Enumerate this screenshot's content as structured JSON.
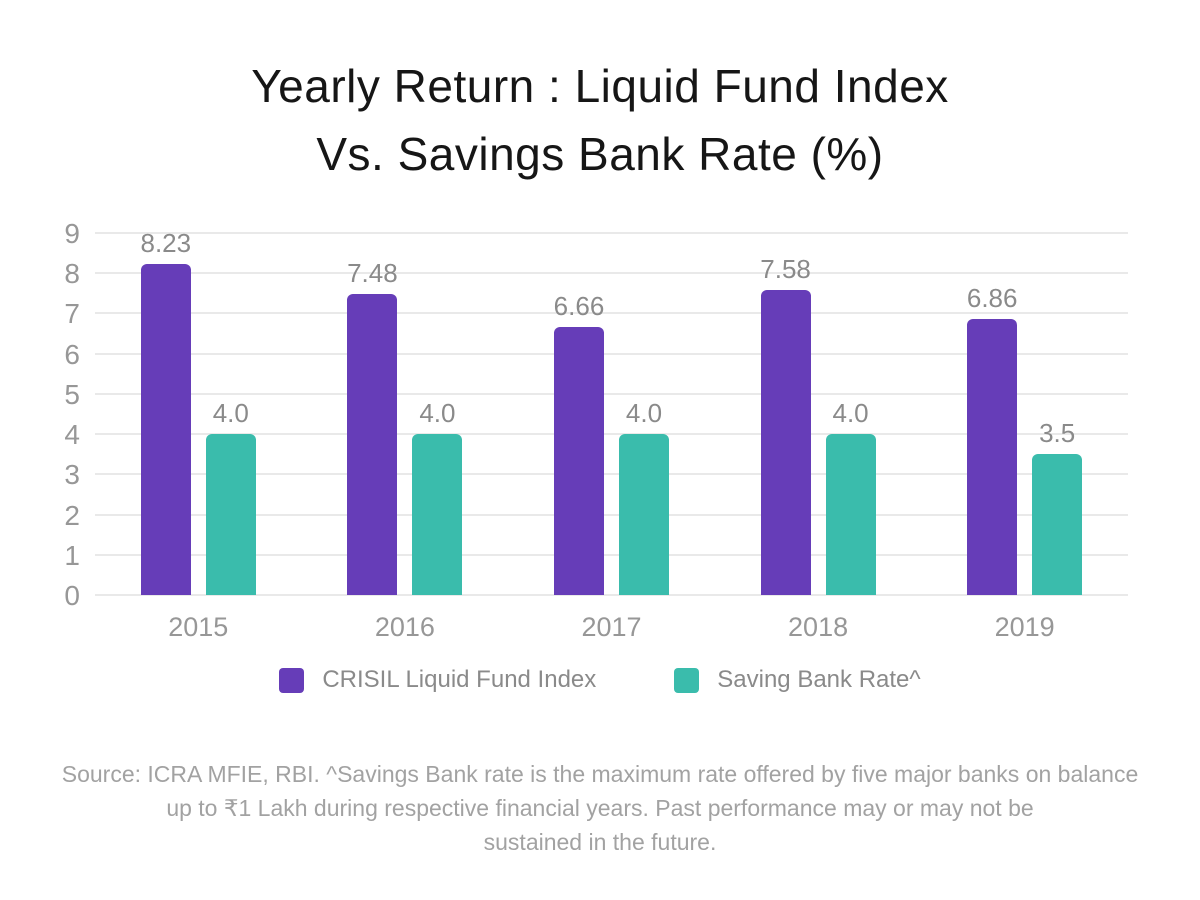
{
  "header": {
    "title_line1": "Yearly Return : Liquid Fund Index",
    "title_line2": "Vs. Savings Bank Rate (%)"
  },
  "colors": {
    "series_purple": "#663db8",
    "series_teal": "#3abcac",
    "axis_text": "#979797",
    "value_label_text": "#8a8a8a",
    "gridline": "#e9e9e9",
    "title_text": "#161616",
    "footer_text": "#a2a2a2",
    "background": "#ffffff"
  },
  "chart_data": {
    "type": "bar",
    "title": "Yearly Return : Liquid Fund Index Vs. Savings Bank Rate (%)",
    "categories": [
      "2015",
      "2016",
      "2017",
      "2018",
      "2019"
    ],
    "series": [
      {
        "name": "CRISIL Liquid Fund Index",
        "color": "#663db8",
        "values": [
          8.23,
          7.48,
          6.66,
          7.58,
          6.86
        ],
        "labels": [
          "8.23",
          "7.48",
          "6.66",
          "7.58",
          "6.86"
        ]
      },
      {
        "name": "Saving Bank Rate^",
        "color": "#3abcac",
        "values": [
          4.0,
          4.0,
          4.0,
          4.0,
          3.5
        ],
        "labels": [
          "4.0",
          "4.0",
          "4.0",
          "4.0",
          "3.5"
        ]
      }
    ],
    "xlabel": "",
    "ylabel": "",
    "ylim": [
      0,
      9
    ],
    "y_ticks": [
      0,
      1,
      2,
      3,
      4,
      5,
      6,
      7,
      8,
      9
    ],
    "grid": true,
    "legend_position": "bottom"
  },
  "legend": {
    "items": [
      {
        "label": "CRISIL Liquid Fund Index",
        "color": "#663db8"
      },
      {
        "label": "Saving Bank Rate^",
        "color": "#3abcac"
      }
    ]
  },
  "footer": {
    "lines": [
      "Source: ICRA MFIE, RBI. ^Savings Bank rate is the maximum rate offered by five major banks on balance",
      "up to ₹1 Lakh during respective financial years. Past performance may or may not be",
      "sustained in the future."
    ],
    "full_text": "Source: ICRA MFIE, RBI. ^Savings Bank rate is the maximum rate offered by five major banks on balance up to ₹1 Lakh during respective financial years. Past performance may or may not be sustained in the future."
  }
}
